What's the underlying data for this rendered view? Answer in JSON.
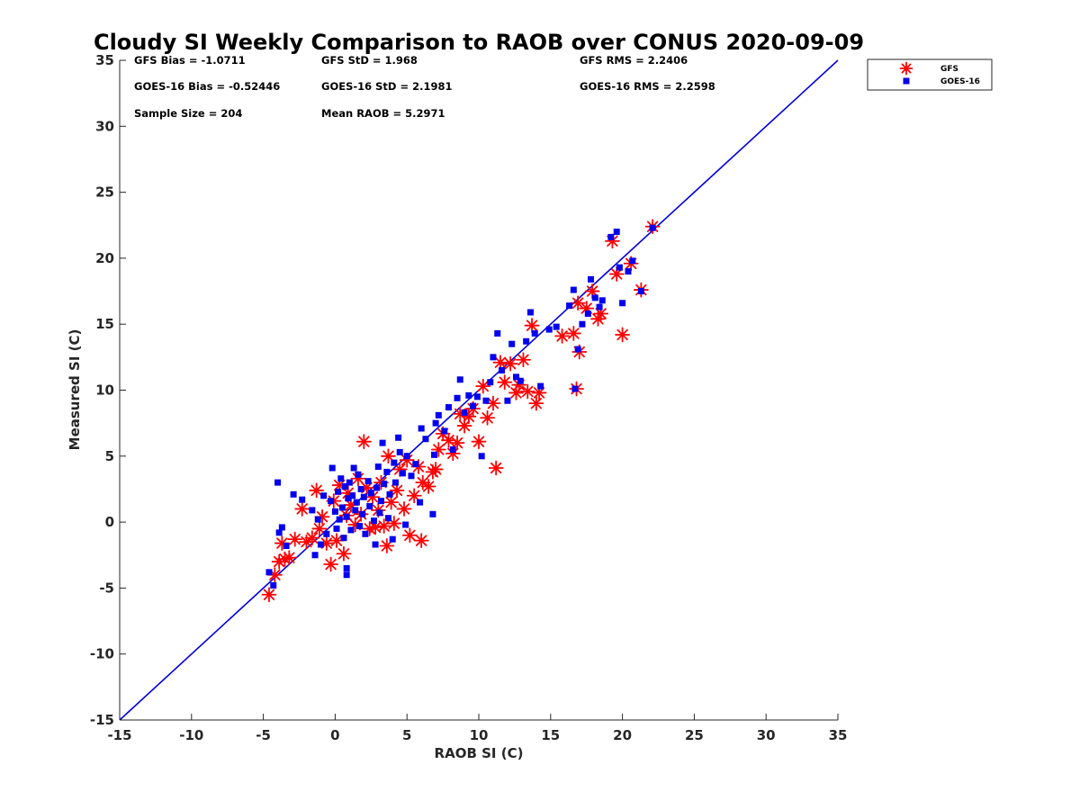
{
  "chart_data": {
    "type": "scatter",
    "title": "Cloudy SI Weekly Comparison to RAOB over CONUS 2020-09-09",
    "xlabel": "RAOB SI (C)",
    "ylabel": "Measured SI (C)",
    "xlim": [
      -15,
      35
    ],
    "ylim": [
      -15,
      35
    ],
    "xticks": [
      -15,
      -10,
      -5,
      0,
      5,
      10,
      15,
      20,
      25,
      30,
      35
    ],
    "yticks": [
      -15,
      -10,
      -5,
      0,
      5,
      10,
      15,
      20,
      25,
      30,
      35
    ],
    "grid": false,
    "legend_position": "outside top-right",
    "reference_line": {
      "from": [
        -15,
        -15
      ],
      "to": [
        35,
        35
      ],
      "color": "#0000dd"
    },
    "stats": [
      {
        "col": 0,
        "row": 0,
        "text": "GFS Bias = -1.0711"
      },
      {
        "col": 1,
        "row": 0,
        "text": "GFS StD = 1.968"
      },
      {
        "col": 2,
        "row": 0,
        "text": "GFS RMS = 2.2406"
      },
      {
        "col": 0,
        "row": 1,
        "text": "GOES-16 Bias = -0.52446"
      },
      {
        "col": 1,
        "row": 1,
        "text": "GOES-16 StD = 2.1981"
      },
      {
        "col": 2,
        "row": 1,
        "text": "GOES-16 RMS = 2.2598"
      },
      {
        "col": 0,
        "row": 2,
        "text": "Sample Size = 204"
      },
      {
        "col": 1,
        "row": 2,
        "text": "Mean RAOB = 5.2971"
      }
    ],
    "series": [
      {
        "name": "GFS",
        "marker": "asterisk",
        "color": "#ff0000",
        "points": [
          [
            -4.6,
            -5.5
          ],
          [
            -4.2,
            -4.0
          ],
          [
            -3.9,
            -3.0
          ],
          [
            -3.7,
            -1.6
          ],
          [
            -3.5,
            -2.8
          ],
          [
            -3.2,
            -2.7
          ],
          [
            -2.8,
            -1.3
          ],
          [
            -2.3,
            1.0
          ],
          [
            -2.0,
            -1.5
          ],
          [
            -1.6,
            -1.2
          ],
          [
            -1.3,
            2.4
          ],
          [
            -1.1,
            -0.5
          ],
          [
            -0.9,
            0.4
          ],
          [
            -0.6,
            -1.6
          ],
          [
            -0.3,
            -3.2
          ],
          [
            -0.1,
            1.6
          ],
          [
            0.1,
            -1.4
          ],
          [
            0.3,
            2.8
          ],
          [
            0.6,
            -2.4
          ],
          [
            0.8,
            0.5
          ],
          [
            0.9,
            2.2
          ],
          [
            1.1,
            1.3
          ],
          [
            1.4,
            -0.2
          ],
          [
            1.6,
            3.3
          ],
          [
            1.8,
            0.6
          ],
          [
            2.0,
            6.1
          ],
          [
            2.2,
            2.6
          ],
          [
            2.4,
            -0.5
          ],
          [
            2.6,
            1.9
          ],
          [
            2.8,
            -0.4
          ],
          [
            3.0,
            0.9
          ],
          [
            3.2,
            3.0
          ],
          [
            3.4,
            -0.3
          ],
          [
            3.6,
            -1.8
          ],
          [
            3.7,
            5.0
          ],
          [
            3.9,
            1.5
          ],
          [
            4.1,
            -0.1
          ],
          [
            4.3,
            2.4
          ],
          [
            4.5,
            4.0
          ],
          [
            4.8,
            1.0
          ],
          [
            5.0,
            4.7
          ],
          [
            5.2,
            -1.0
          ],
          [
            5.5,
            2.0
          ],
          [
            5.8,
            4.2
          ],
          [
            6.0,
            -1.4
          ],
          [
            6.1,
            3.0
          ],
          [
            6.5,
            2.7
          ],
          [
            6.8,
            3.8
          ],
          [
            7.0,
            4.0
          ],
          [
            7.2,
            5.5
          ],
          [
            7.5,
            6.7
          ],
          [
            7.9,
            6.2
          ],
          [
            8.2,
            5.2
          ],
          [
            8.5,
            6.0
          ],
          [
            8.7,
            8.2
          ],
          [
            9.0,
            7.3
          ],
          [
            9.3,
            8.0
          ],
          [
            9.6,
            8.6
          ],
          [
            10.0,
            6.1
          ],
          [
            10.3,
            10.3
          ],
          [
            10.6,
            7.9
          ],
          [
            11.0,
            9.0
          ],
          [
            11.2,
            4.1
          ],
          [
            11.5,
            12.1
          ],
          [
            11.8,
            10.6
          ],
          [
            12.2,
            12.0
          ],
          [
            12.6,
            9.8
          ],
          [
            12.8,
            10.4
          ],
          [
            13.1,
            12.3
          ],
          [
            13.4,
            9.9
          ],
          [
            13.7,
            14.9
          ],
          [
            14.0,
            9.0
          ],
          [
            14.2,
            9.8
          ],
          [
            15.8,
            14.1
          ],
          [
            16.6,
            14.3
          ],
          [
            16.8,
            10.1
          ],
          [
            16.9,
            16.6
          ],
          [
            17.0,
            12.9
          ],
          [
            17.5,
            16.2
          ],
          [
            17.9,
            17.5
          ],
          [
            18.3,
            15.4
          ],
          [
            18.5,
            15.8
          ],
          [
            19.3,
            21.3
          ],
          [
            19.6,
            18.8
          ],
          [
            20.0,
            14.2
          ],
          [
            20.6,
            19.6
          ],
          [
            21.3,
            17.6
          ],
          [
            22.1,
            22.4
          ]
        ]
      },
      {
        "name": "GOES-16",
        "marker": "square",
        "color": "#0000ee",
        "points": [
          [
            -4.6,
            -3.8
          ],
          [
            -4.3,
            -4.8
          ],
          [
            -4.0,
            3.0
          ],
          [
            -3.9,
            -0.8
          ],
          [
            -3.7,
            -0.4
          ],
          [
            -3.4,
            -1.8
          ],
          [
            -2.9,
            2.1
          ],
          [
            -2.3,
            1.7
          ],
          [
            -1.6,
            0.9
          ],
          [
            -1.4,
            -2.5
          ],
          [
            -1.2,
            0.2
          ],
          [
            -1.0,
            -1.7
          ],
          [
            -0.8,
            2.0
          ],
          [
            -0.6,
            -0.9
          ],
          [
            -0.3,
            1.6
          ],
          [
            -0.2,
            4.1
          ],
          [
            0.0,
            0.8
          ],
          [
            0.1,
            -0.5
          ],
          [
            0.2,
            2.3
          ],
          [
            0.3,
            0.2
          ],
          [
            0.4,
            3.3
          ],
          [
            0.5,
            1.1
          ],
          [
            0.6,
            -1.2
          ],
          [
            0.7,
            2.7
          ],
          [
            0.8,
            0.4
          ],
          [
            0.8,
            -3.5
          ],
          [
            0.8,
            -4.0
          ],
          [
            0.9,
            1.8
          ],
          [
            1.0,
            3.0
          ],
          [
            1.1,
            -0.6
          ],
          [
            1.2,
            2.0
          ],
          [
            1.3,
            4.1
          ],
          [
            1.4,
            0.9
          ],
          [
            1.5,
            1.5
          ],
          [
            1.6,
            3.6
          ],
          [
            1.7,
            -0.3
          ],
          [
            1.8,
            2.5
          ],
          [
            1.9,
            0.6
          ],
          [
            2.0,
            1.9
          ],
          [
            2.1,
            -0.9
          ],
          [
            2.3,
            3.1
          ],
          [
            2.4,
            1.2
          ],
          [
            2.5,
            2.2
          ],
          [
            2.7,
            0.1
          ],
          [
            2.8,
            -1.7
          ],
          [
            2.9,
            2.6
          ],
          [
            3.0,
            4.2
          ],
          [
            3.1,
            0.7
          ],
          [
            3.2,
            1.6
          ],
          [
            3.3,
            6.0
          ],
          [
            3.4,
            2.9
          ],
          [
            3.6,
            3.8
          ],
          [
            3.7,
            0.3
          ],
          [
            3.8,
            2.1
          ],
          [
            4.0,
            -1.3
          ],
          [
            4.1,
            4.5
          ],
          [
            4.2,
            3.0
          ],
          [
            4.4,
            6.4
          ],
          [
            4.5,
            5.3
          ],
          [
            4.7,
            3.7
          ],
          [
            4.9,
            -0.2
          ],
          [
            5.0,
            5.0
          ],
          [
            5.3,
            3.5
          ],
          [
            5.6,
            4.4
          ],
          [
            5.9,
            1.5
          ],
          [
            6.0,
            7.1
          ],
          [
            6.3,
            6.3
          ],
          [
            6.8,
            0.6
          ],
          [
            6.9,
            5.1
          ],
          [
            7.0,
            7.5
          ],
          [
            7.2,
            8.1
          ],
          [
            7.6,
            6.9
          ],
          [
            7.9,
            8.7
          ],
          [
            8.2,
            5.5
          ],
          [
            8.5,
            9.4
          ],
          [
            8.7,
            10.8
          ],
          [
            9.0,
            8.3
          ],
          [
            9.3,
            9.6
          ],
          [
            9.6,
            8.8
          ],
          [
            9.9,
            9.5
          ],
          [
            10.2,
            5.0
          ],
          [
            10.5,
            9.2
          ],
          [
            10.8,
            10.6
          ],
          [
            11.0,
            12.5
          ],
          [
            11.3,
            14.3
          ],
          [
            11.6,
            11.5
          ],
          [
            12.0,
            9.2
          ],
          [
            12.3,
            13.5
          ],
          [
            12.6,
            11.0
          ],
          [
            12.9,
            10.7
          ],
          [
            13.3,
            13.7
          ],
          [
            13.6,
            15.9
          ],
          [
            13.9,
            14.3
          ],
          [
            14.3,
            10.3
          ],
          [
            14.9,
            14.6
          ],
          [
            15.4,
            14.8
          ],
          [
            16.3,
            16.4
          ],
          [
            16.6,
            17.6
          ],
          [
            16.7,
            10.1
          ],
          [
            16.9,
            13.1
          ],
          [
            17.2,
            15.0
          ],
          [
            17.6,
            15.8
          ],
          [
            17.8,
            18.4
          ],
          [
            18.1,
            17.0
          ],
          [
            18.4,
            16.3
          ],
          [
            18.6,
            16.8
          ],
          [
            19.2,
            21.6
          ],
          [
            19.6,
            22.0
          ],
          [
            19.8,
            19.3
          ],
          [
            20.0,
            16.6
          ],
          [
            20.4,
            19.0
          ],
          [
            20.7,
            19.8
          ],
          [
            21.3,
            17.5
          ],
          [
            22.1,
            22.3
          ]
        ]
      }
    ]
  }
}
